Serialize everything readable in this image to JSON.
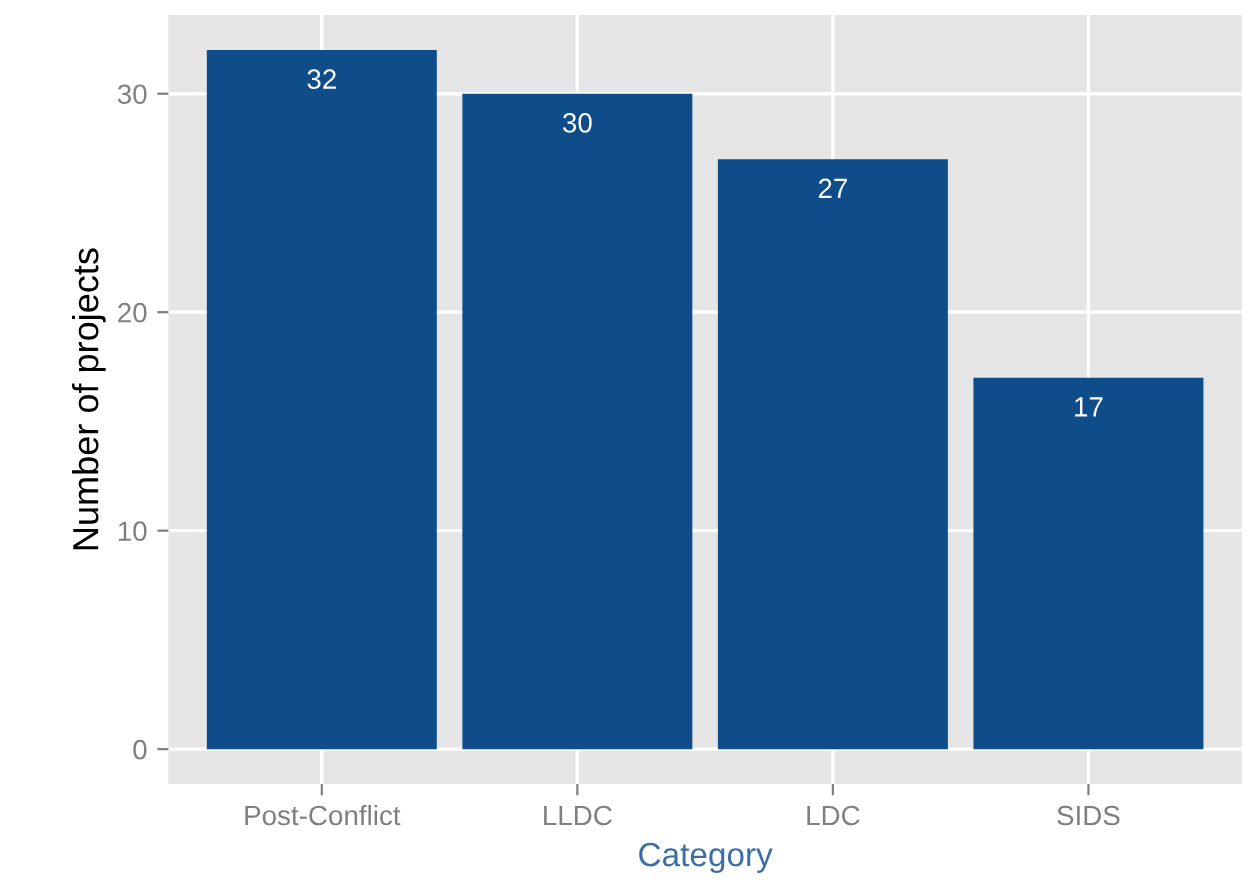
{
  "chart_data": {
    "type": "bar",
    "xlabel": "Category",
    "ylabel": "Number of projects",
    "categories": [
      "Post-Conflict",
      "LLDC",
      "LDC",
      "SIDS"
    ],
    "values": [
      32,
      30,
      27,
      17
    ],
    "color": "#0f4c8a",
    "ylim": [
      -1.6,
      33.6
    ],
    "yticks": [
      0,
      10,
      20,
      30
    ],
    "grid": true,
    "data_labels": true
  }
}
